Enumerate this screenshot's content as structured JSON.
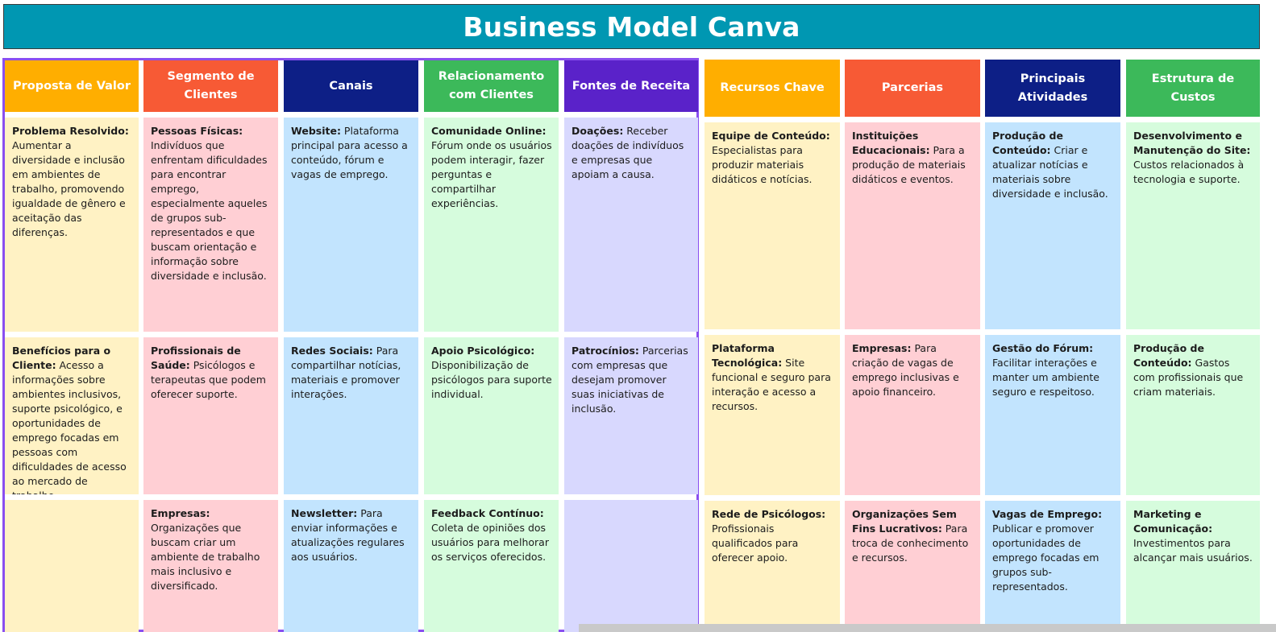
{
  "title": "Business Model Canva",
  "columns": [
    {
      "key": "proposta",
      "header": "Proposta de Valor",
      "header_color": "#ffae00",
      "cell_color": "#fff2c4",
      "cells": [
        {
          "label": "Problema Resolvido:",
          "text": " Aumentar a diversidade e inclusão em ambientes de trabalho, promovendo igualdade de gênero e aceitação das diferenças."
        },
        {
          "label": "Benefícios para o Cliente:",
          "text": " Acesso a informações sobre ambientes inclusivos, suporte psicológico, e oportunidades de emprego focadas em pessoas com dificuldades de acesso ao mercado de trabalho."
        },
        {
          "label": "",
          "text": ""
        }
      ]
    },
    {
      "key": "segmento",
      "header": "Segmento de Clientes",
      "header_color": "#f75a35",
      "cell_color": "#ffcfd4",
      "cells": [
        {
          "label": "Pessoas Físicas:",
          "text": " Indivíduos que enfrentam dificuldades para encontrar emprego, especialmente aqueles de grupos sub-representados e que buscam orientação e informação sobre diversidade e inclusão."
        },
        {
          "label": "Profissionais de Saúde:",
          "text": " Psicólogos e terapeutas que podem oferecer suporte."
        },
        {
          "label": "Empresas:",
          "text": " Organizações que buscam criar um ambiente de trabalho mais inclusivo e diversificado."
        }
      ]
    },
    {
      "key": "canais",
      "header": "Canais",
      "header_color": "#0d1f86",
      "cell_color": "#c2e4fe",
      "cells": [
        {
          "label": "Website:",
          "text": " Plataforma principal para acesso a conteúdo, fórum e vagas de emprego."
        },
        {
          "label": "Redes Sociais:",
          "text": " Para compartilhar notícias, materiais e promover interações."
        },
        {
          "label": "Newsletter:",
          "text": " Para enviar informações e atualizações regulares aos usuários."
        }
      ]
    },
    {
      "key": "relacionamento",
      "header": "Relacionamento com Clientes",
      "header_color": "#3cb95a",
      "cell_color": "#d6fcdd",
      "cells": [
        {
          "label": "Comunidade Online:",
          "text": " Fórum onde os usuários podem interagir, fazer perguntas e compartilhar experiências."
        },
        {
          "label": "Apoio Psicológico:",
          "text": " Disponibilização de psicólogos para suporte individual."
        },
        {
          "label": "Feedback Contínuo:",
          "text": " Coleta de opiniões dos usuários para melhorar os serviços oferecidos."
        }
      ]
    },
    {
      "key": "receita",
      "header": "Fontes de Receita",
      "header_color": "#5a22c9",
      "cell_color": "#d8d8fe",
      "cells": [
        {
          "label": "Doações:",
          "text": " Receber doações de indivíduos e empresas que apoiam a causa."
        },
        {
          "label": "Patrocínios:",
          "text": " Parcerias com empresas que desejam promover suas iniciativas de inclusão."
        },
        {
          "label": "",
          "text": ""
        }
      ]
    },
    {
      "key": "recursos",
      "header": "Recursos Chave",
      "header_color": "#ffae00",
      "cell_color": "#fff2c4",
      "cells": [
        {
          "label": "Equipe de Conteúdo:",
          "text": " Especialistas para produzir materiais didáticos e notícias."
        },
        {
          "label": "Plataforma Tecnológica:",
          "text": " Site funcional e seguro para interação e acesso a recursos."
        },
        {
          "label": "Rede de Psicólogos:",
          "text": " Profissionais qualificados para oferecer apoio."
        }
      ]
    },
    {
      "key": "parcerias",
      "header": "Parcerias",
      "header_color": "#f75a35",
      "cell_color": "#ffcfd4",
      "cells": [
        {
          "label": "Instituições Educacionais:",
          "text": " Para a produção de materiais didáticos e eventos."
        },
        {
          "label": "Empresas:",
          "text": " Para criação de vagas de emprego inclusivas e apoio financeiro."
        },
        {
          "label": "Organizações Sem Fins Lucrativos:",
          "text": " Para troca de conhecimento e recursos."
        }
      ]
    },
    {
      "key": "atividades",
      "header": "Principais Atividades",
      "header_color": "#0d1f86",
      "cell_color": "#c2e4fe",
      "cells": [
        {
          "label": "Produção de Conteúdo:",
          "text": " Criar e atualizar notícias e materiais sobre diversidade e inclusão."
        },
        {
          "label": "Gestão do Fórum:",
          "text": " Facilitar interações e manter um ambiente seguro e respeitoso."
        },
        {
          "label": "Vagas de Emprego:",
          "text": " Publicar e promover oportunidades de emprego focadas em grupos sub-representados."
        }
      ]
    },
    {
      "key": "custos",
      "header": "Estrutura de Custos",
      "header_color": "#3cb95a",
      "cell_color": "#d6fcdd",
      "cells": [
        {
          "label": "Desenvolvimento e Manutenção do Site:",
          "text": " Custos relacionados à tecnologia e suporte."
        },
        {
          "label": "Produção de Conteúdo:",
          "text": " Gastos com profissionais que criam materiais."
        },
        {
          "label": "Marketing e Comunicação:",
          "text": " Investimentos para alcançar mais usuários."
        }
      ]
    }
  ]
}
